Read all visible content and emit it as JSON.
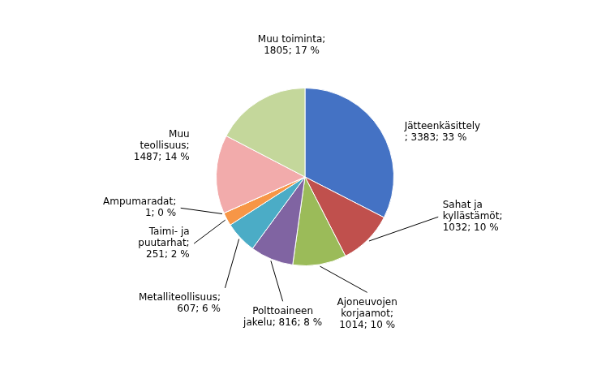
{
  "chart_data": {
    "type": "pie",
    "categories": [
      "Jätteenkäsittely\n; 3383; 33 %",
      "Sahat ja\nkyllästämöt;\n1032; 10 %",
      "Ajoneuvojen\nkorjaamot;\n1014; 10 %",
      "Polttoaineen\njakelu; 816; 8 %",
      "Metalliteollisuus;\n607; 6 %",
      "Taimi- ja\npuutarhat;\n251; 2 %",
      "Ampumaradat;\n1; 0 %",
      "Muu\nteollisuus;\n1487; 14 %",
      "Muu toiminta;\n1805; 17 %"
    ],
    "values": [
      3383,
      1032,
      1014,
      816,
      607,
      251,
      1,
      1487,
      1805
    ],
    "colors": [
      "#4472C4",
      "#C0504D",
      "#9BBB59",
      "#8064A2",
      "#4BACC6",
      "#F79646",
      "#808080",
      "#F2ABAB",
      "#C4D79B"
    ]
  }
}
